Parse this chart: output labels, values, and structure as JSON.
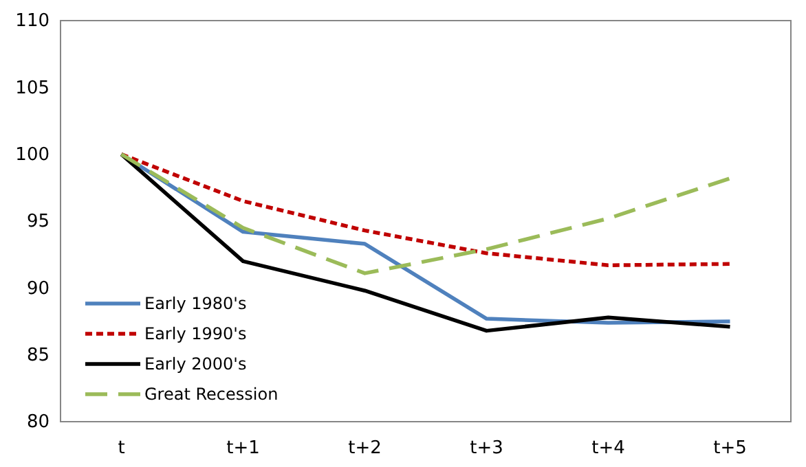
{
  "chart_data": {
    "type": "line",
    "categories": [
      "t",
      "t+1",
      "t+2",
      "t+3",
      "t+4",
      "t+5"
    ],
    "ylim": [
      80,
      110
    ],
    "yticks": [
      80,
      85,
      90,
      95,
      100,
      105,
      110
    ],
    "grid": false,
    "legend": "bottom left",
    "marker": "none",
    "series": [
      {
        "name": "Early 1980's",
        "color": "#4f81bd",
        "line_style": "solid",
        "values": [
          100,
          94.2,
          93.3,
          87.7,
          87.4,
          87.5
        ]
      },
      {
        "name": "Early 1990's",
        "color": "#c00000",
        "line_style": "dotted",
        "values": [
          100,
          96.5,
          94.3,
          92.6,
          91.7,
          91.8
        ]
      },
      {
        "name": "Early 2000's",
        "color": "#000000",
        "line_style": "solid",
        "values": [
          100,
          92.0,
          89.8,
          86.8,
          87.8,
          87.1
        ]
      },
      {
        "name": "Great Recession",
        "color": "#9bbb59",
        "line_style": "dashed",
        "values": [
          100,
          94.5,
          91.1,
          92.9,
          95.2,
          98.2
        ]
      }
    ]
  }
}
